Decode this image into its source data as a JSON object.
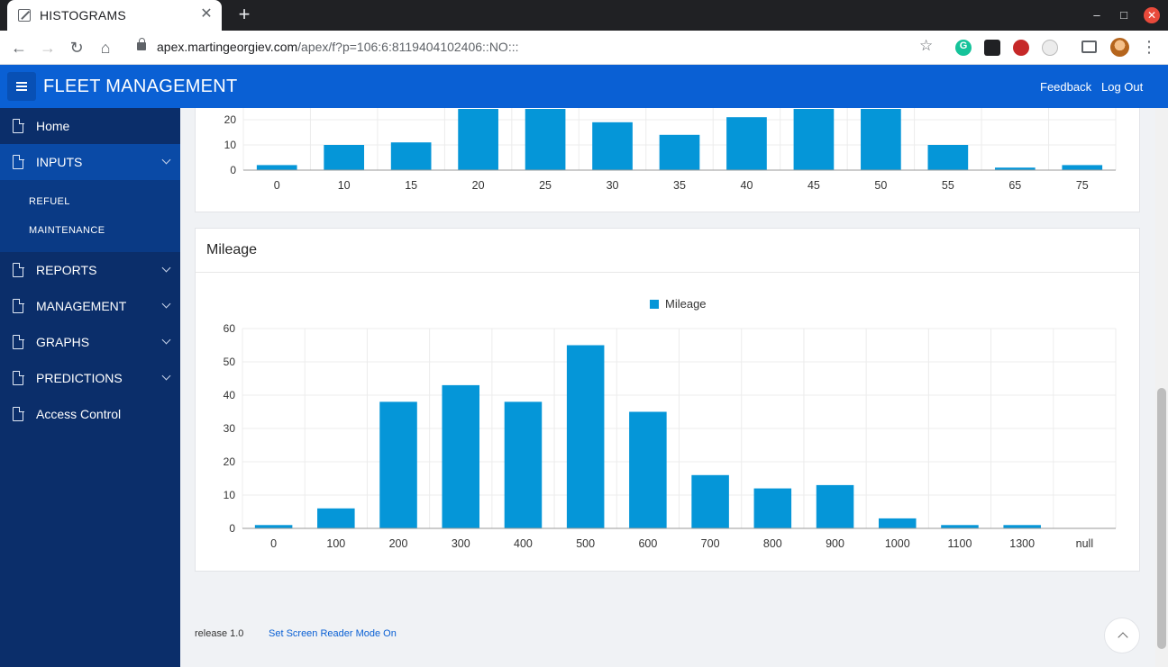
{
  "browser": {
    "tab_title": "HISTOGRAMS",
    "tab_close": "✕",
    "new_tab": "+",
    "url_host": "apex.martingeorgiev.com",
    "url_path": "/apex/f?p=106:6:8119404102406::NO:::",
    "back": "←",
    "forward": "→",
    "reload": "↻",
    "home": "⌂",
    "minimize": "–",
    "maximize": "□",
    "close": "✕"
  },
  "header": {
    "title": "FLEET MANAGEMENT",
    "feedback": "Feedback",
    "logout": "Log Out"
  },
  "sidebar": {
    "items": [
      {
        "label": "Home"
      },
      {
        "label": "INPUTS"
      },
      {
        "label": "REPORTS"
      },
      {
        "label": "MANAGEMENT"
      },
      {
        "label": "GRAPHS"
      },
      {
        "label": "PREDICTIONS"
      },
      {
        "label": "Access Control"
      }
    ],
    "subitems": [
      {
        "label": "REFUEL"
      },
      {
        "label": "MAINTENANCE"
      }
    ]
  },
  "footer": {
    "release": "release 1.0",
    "screen_reader": "Set Screen Reader Mode On"
  },
  "colors": {
    "bar": "#0596d8",
    "header": "#0a60d4",
    "sidebar": "#0b2e6a"
  },
  "chart_data": [
    {
      "type": "bar",
      "title": "",
      "categories": [
        "0",
        "10",
        "15",
        "20",
        "25",
        "30",
        "35",
        "40",
        "45",
        "50",
        "55",
        "65",
        "75"
      ],
      "values": [
        2,
        10,
        11,
        25,
        30,
        19,
        14,
        21,
        30,
        30,
        10,
        1,
        2
      ],
      "visible_yticks": [
        0,
        10,
        20
      ],
      "note_cropped_top": true
    },
    {
      "type": "bar",
      "title": "Mileage",
      "legend": "Mileage",
      "legend_position": "top-center",
      "categories": [
        "0",
        "100",
        "200",
        "300",
        "400",
        "500",
        "600",
        "700",
        "800",
        "900",
        "1000",
        "1100",
        "1300",
        "null"
      ],
      "values": [
        1,
        6,
        38,
        43,
        38,
        55,
        35,
        16,
        12,
        13,
        3,
        1,
        1,
        0
      ],
      "ylim": [
        0,
        60
      ],
      "yticks": [
        0,
        10,
        20,
        30,
        40,
        50,
        60
      ],
      "grid": true
    }
  ]
}
